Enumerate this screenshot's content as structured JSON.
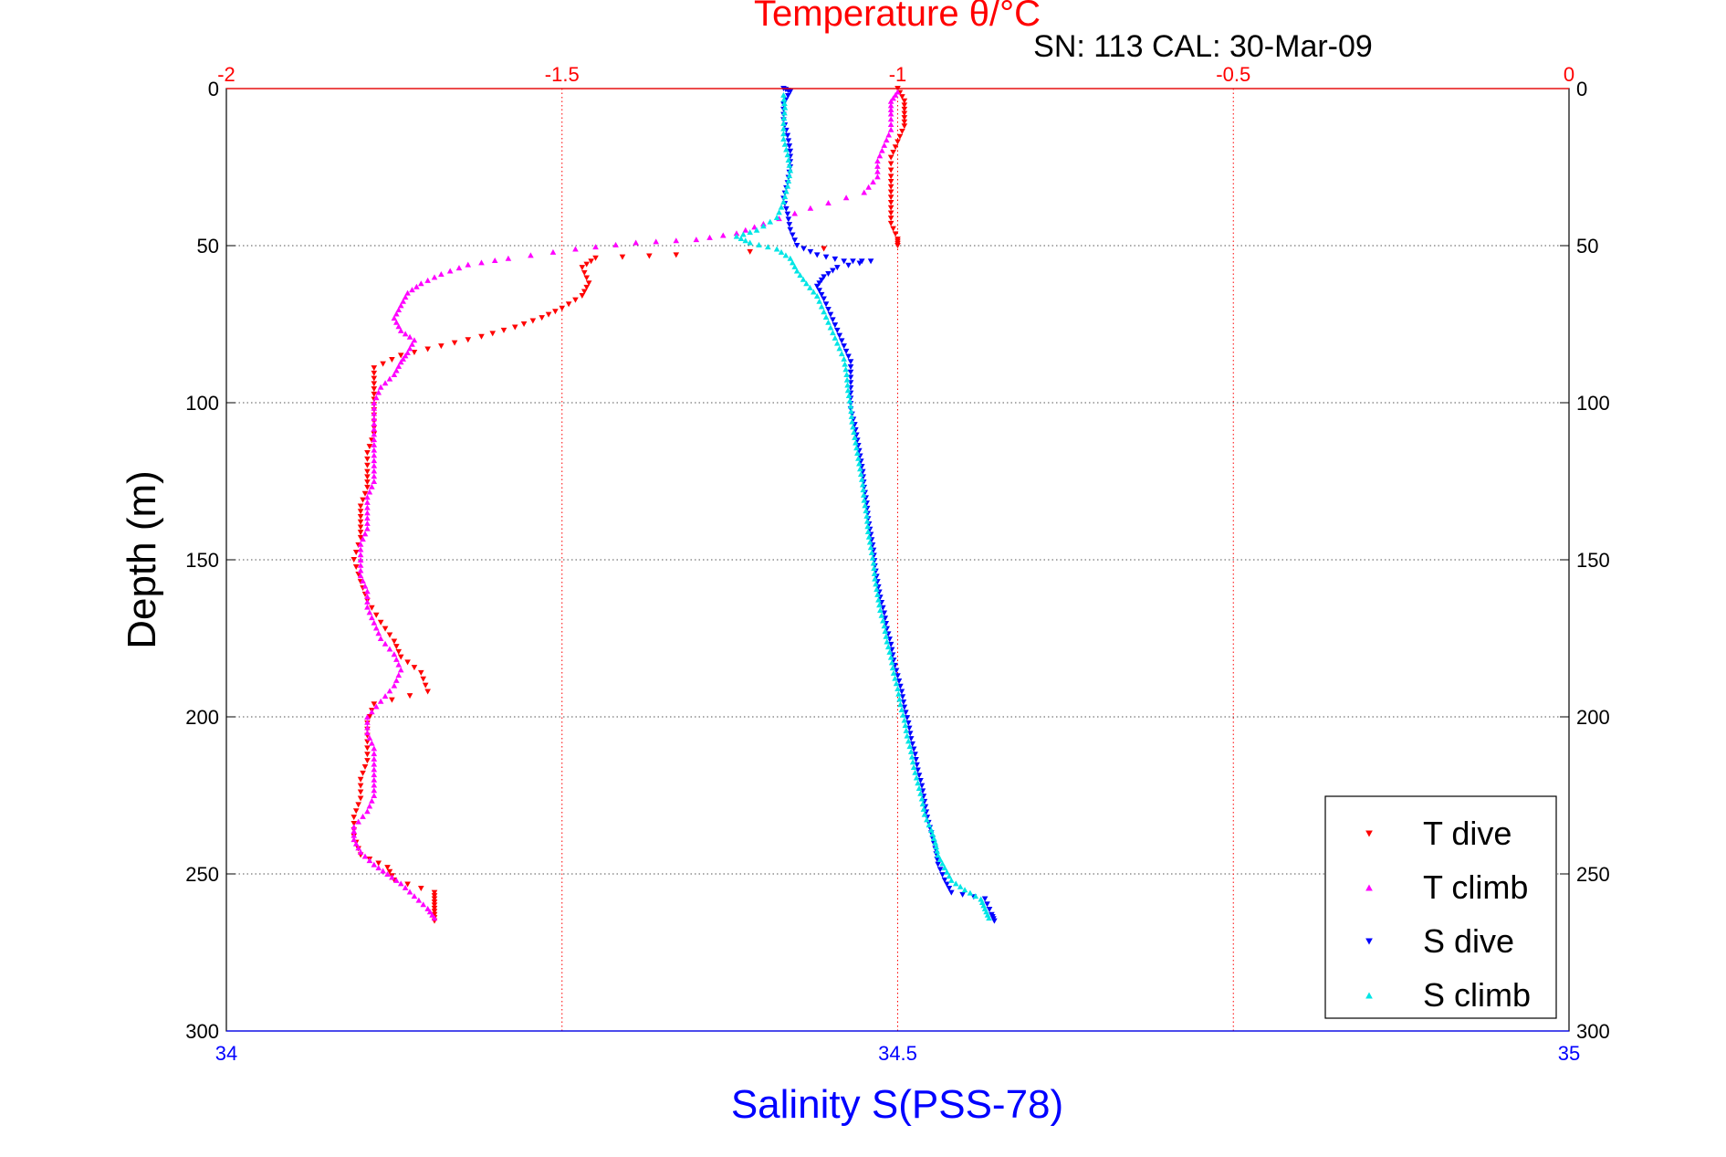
{
  "chart_data": {
    "type": "scatter",
    "title": "Temperature θ/°C",
    "subtitle": "SN: 113  CAL: 30-Mar-09",
    "ylabel": "Depth (m)",
    "xlabel_bottom": "Salinity S(PSS-78)",
    "xlabel_top": "Temperature θ/°C",
    "ylim": [
      0,
      300
    ],
    "y_reversed": true,
    "y_ticks": [
      0,
      50,
      100,
      150,
      200,
      250,
      300
    ],
    "y_tick_labels": [
      "0",
      "50",
      "100",
      "150",
      "200",
      "250",
      "300"
    ],
    "x_top_axis": {
      "label": "Temperature θ/°C",
      "lim": [
        -2,
        0
      ],
      "ticks": [
        -2,
        -1.5,
        -1,
        -0.5,
        0
      ],
      "tick_labels": [
        "-2",
        "-1.5",
        "-1",
        "-0.5",
        "0"
      ],
      "grid": true
    },
    "x_bottom_axis": {
      "label": "Salinity S(PSS-78)",
      "lim": [
        34,
        35
      ],
      "ticks": [
        34,
        34.5,
        35
      ],
      "tick_labels": [
        "34",
        "34.5",
        "35"
      ]
    },
    "grid": true,
    "legend_position": "bottom-right",
    "colors": {
      "temperature_axis": "#ff0000",
      "salinity_axis": "#0000ff",
      "frame": "#000000",
      "grid_depth": "#555555"
    },
    "series": [
      {
        "name": "T dive",
        "axis": "temperature",
        "marker": "triangle-down",
        "color": "#ff0000",
        "points": [
          [
            -1.0,
            0
          ],
          [
            -0.99,
            4
          ],
          [
            -0.99,
            8
          ],
          [
            -0.99,
            12
          ],
          [
            -1.0,
            17
          ],
          [
            -1.01,
            22
          ],
          [
            -1.01,
            28
          ],
          [
            -1.01,
            33
          ],
          [
            -1.01,
            38
          ],
          [
            -1.01,
            43
          ],
          [
            -1.0,
            48
          ],
          [
            -1.0,
            50
          ],
          [
            -1.33,
            53
          ],
          [
            -1.45,
            54
          ],
          [
            -1.47,
            57
          ],
          [
            -1.46,
            62
          ],
          [
            -1.47,
            66
          ],
          [
            -1.5,
            70
          ],
          [
            -1.53,
            73
          ],
          [
            -1.57,
            76
          ],
          [
            -1.62,
            79
          ],
          [
            -1.68,
            82
          ],
          [
            -1.74,
            85
          ],
          [
            -1.78,
            89
          ],
          [
            -1.78,
            94
          ],
          [
            -1.78,
            99
          ],
          [
            -1.78,
            104
          ],
          [
            -1.78,
            110
          ],
          [
            -1.79,
            116
          ],
          [
            -1.79,
            122
          ],
          [
            -1.79,
            127
          ],
          [
            -1.8,
            133
          ],
          [
            -1.8,
            138
          ],
          [
            -1.8,
            143
          ],
          [
            -1.81,
            150
          ],
          [
            -1.8,
            157
          ],
          [
            -1.79,
            163
          ],
          [
            -1.77,
            170
          ],
          [
            -1.75,
            176
          ],
          [
            -1.74,
            181
          ],
          [
            -1.71,
            186
          ],
          [
            -1.7,
            192
          ],
          [
            -1.78,
            196
          ],
          [
            -1.79,
            202
          ],
          [
            -1.79,
            208
          ],
          [
            -1.79,
            214
          ],
          [
            -1.8,
            220
          ],
          [
            -1.8,
            226
          ],
          [
            -1.81,
            232
          ],
          [
            -1.81,
            238
          ],
          [
            -1.8,
            244
          ],
          [
            -1.76,
            248
          ],
          [
            -1.75,
            252
          ],
          [
            -1.69,
            256
          ],
          [
            -1.69,
            259
          ],
          [
            -1.69,
            262
          ],
          [
            -1.69,
            265
          ]
        ]
      },
      {
        "name": "T climb",
        "axis": "temperature",
        "marker": "triangle-up",
        "color": "#ff00ff",
        "points": [
          [
            -1.69,
            264
          ],
          [
            -1.7,
            261
          ],
          [
            -1.72,
            257
          ],
          [
            -1.74,
            253
          ],
          [
            -1.76,
            250
          ],
          [
            -1.78,
            247
          ],
          [
            -1.8,
            243
          ],
          [
            -1.81,
            239
          ],
          [
            -1.81,
            235
          ],
          [
            -1.79,
            230
          ],
          [
            -1.78,
            225
          ],
          [
            -1.78,
            220
          ],
          [
            -1.78,
            215
          ],
          [
            -1.78,
            210
          ],
          [
            -1.79,
            205
          ],
          [
            -1.79,
            200
          ],
          [
            -1.77,
            195
          ],
          [
            -1.75,
            190
          ],
          [
            -1.74,
            185
          ],
          [
            -1.75,
            180
          ],
          [
            -1.77,
            175
          ],
          [
            -1.78,
            170
          ],
          [
            -1.79,
            165
          ],
          [
            -1.79,
            160
          ],
          [
            -1.8,
            155
          ],
          [
            -1.8,
            150
          ],
          [
            -1.8,
            145
          ],
          [
            -1.79,
            140
          ],
          [
            -1.79,
            135
          ],
          [
            -1.79,
            130
          ],
          [
            -1.78,
            125
          ],
          [
            -1.78,
            120
          ],
          [
            -1.78,
            115
          ],
          [
            -1.78,
            110
          ],
          [
            -1.78,
            105
          ],
          [
            -1.78,
            100
          ],
          [
            -1.77,
            95
          ],
          [
            -1.75,
            91
          ],
          [
            -1.74,
            87
          ],
          [
            -1.73,
            84
          ],
          [
            -1.72,
            80
          ],
          [
            -1.74,
            77
          ],
          [
            -1.75,
            73
          ],
          [
            -1.74,
            69
          ],
          [
            -1.73,
            65
          ],
          [
            -1.71,
            62
          ],
          [
            -1.68,
            59
          ],
          [
            -1.64,
            56
          ],
          [
            -1.58,
            54
          ],
          [
            -1.48,
            51
          ],
          [
            -1.39,
            49
          ],
          [
            -1.3,
            48
          ],
          [
            -1.24,
            46
          ],
          [
            -1.2,
            43
          ],
          [
            -1.13,
            38
          ],
          [
            -1.05,
            33
          ],
          [
            -1.03,
            28
          ],
          [
            -1.03,
            23
          ],
          [
            -1.02,
            18
          ],
          [
            -1.01,
            13
          ],
          [
            -1.01,
            8
          ],
          [
            -1.01,
            4
          ],
          [
            -1.0,
            1
          ]
        ]
      },
      {
        "name": "S dive",
        "axis": "salinity",
        "marker": "triangle-down",
        "color": "#0000ff",
        "points": [
          [
            34.415,
            0
          ],
          [
            34.42,
            1
          ],
          [
            34.415,
            5
          ],
          [
            34.415,
            10
          ],
          [
            34.418,
            15
          ],
          [
            34.42,
            20
          ],
          [
            34.42,
            25
          ],
          [
            34.418,
            30
          ],
          [
            34.415,
            35
          ],
          [
            34.418,
            40
          ],
          [
            34.42,
            45
          ],
          [
            34.425,
            50
          ],
          [
            34.44,
            53
          ],
          [
            34.46,
            55
          ],
          [
            34.48,
            55
          ],
          [
            34.455,
            57
          ],
          [
            34.445,
            60
          ],
          [
            34.44,
            63
          ],
          [
            34.445,
            67
          ],
          [
            34.45,
            72
          ],
          [
            34.455,
            77
          ],
          [
            34.46,
            82
          ],
          [
            34.465,
            87
          ],
          [
            34.465,
            92
          ],
          [
            34.465,
            97
          ],
          [
            34.465,
            102
          ],
          [
            34.468,
            107
          ],
          [
            34.47,
            112
          ],
          [
            34.472,
            117
          ],
          [
            34.474,
            122
          ],
          [
            34.475,
            127
          ],
          [
            34.477,
            132
          ],
          [
            34.478,
            137
          ],
          [
            34.48,
            142
          ],
          [
            34.482,
            147
          ],
          [
            34.483,
            152
          ],
          [
            34.485,
            157
          ],
          [
            34.487,
            162
          ],
          [
            34.49,
            167
          ],
          [
            34.492,
            172
          ],
          [
            34.495,
            177
          ],
          [
            34.497,
            182
          ],
          [
            34.5,
            187
          ],
          [
            34.503,
            192
          ],
          [
            34.505,
            197
          ],
          [
            34.508,
            202
          ],
          [
            34.51,
            207
          ],
          [
            34.513,
            212
          ],
          [
            34.515,
            217
          ],
          [
            34.518,
            222
          ],
          [
            34.52,
            227
          ],
          [
            34.522,
            232
          ],
          [
            34.525,
            237
          ],
          [
            34.528,
            242
          ],
          [
            34.53,
            247
          ],
          [
            34.535,
            252
          ],
          [
            34.54,
            256
          ],
          [
            34.565,
            258
          ],
          [
            34.57,
            263
          ],
          [
            34.572,
            265
          ]
        ]
      },
      {
        "name": "S climb",
        "axis": "salinity",
        "marker": "triangle-up",
        "color": "#00e5e5",
        "points": [
          [
            34.568,
            264
          ],
          [
            34.565,
            261
          ],
          [
            34.562,
            258
          ],
          [
            34.55,
            255
          ],
          [
            34.54,
            252
          ],
          [
            34.535,
            248
          ],
          [
            34.53,
            244
          ],
          [
            34.528,
            240
          ],
          [
            34.525,
            236
          ],
          [
            34.52,
            231
          ],
          [
            34.518,
            226
          ],
          [
            34.515,
            221
          ],
          [
            34.512,
            216
          ],
          [
            34.51,
            211
          ],
          [
            34.507,
            206
          ],
          [
            34.505,
            201
          ],
          [
            34.502,
            196
          ],
          [
            34.5,
            191
          ],
          [
            34.497,
            186
          ],
          [
            34.495,
            181
          ],
          [
            34.492,
            176
          ],
          [
            34.49,
            171
          ],
          [
            34.487,
            166
          ],
          [
            34.485,
            161
          ],
          [
            34.483,
            156
          ],
          [
            34.482,
            151
          ],
          [
            34.48,
            146
          ],
          [
            34.478,
            141
          ],
          [
            34.477,
            136
          ],
          [
            34.475,
            131
          ],
          [
            34.474,
            126
          ],
          [
            34.472,
            121
          ],
          [
            34.47,
            116
          ],
          [
            34.468,
            111
          ],
          [
            34.466,
            106
          ],
          [
            34.465,
            101
          ],
          [
            34.463,
            96
          ],
          [
            34.462,
            91
          ],
          [
            34.46,
            86
          ],
          [
            34.455,
            81
          ],
          [
            34.45,
            76
          ],
          [
            34.445,
            71
          ],
          [
            34.44,
            66
          ],
          [
            34.432,
            62
          ],
          [
            34.425,
            58
          ],
          [
            34.42,
            54
          ],
          [
            34.41,
            51
          ],
          [
            34.39,
            49
          ],
          [
            34.38,
            47
          ],
          [
            34.395,
            45
          ],
          [
            34.41,
            41
          ],
          [
            34.415,
            36
          ],
          [
            34.418,
            31
          ],
          [
            34.42,
            26
          ],
          [
            34.418,
            21
          ],
          [
            34.415,
            16
          ],
          [
            34.415,
            11
          ],
          [
            34.416,
            6
          ],
          [
            34.415,
            2
          ]
        ]
      }
    ]
  }
}
